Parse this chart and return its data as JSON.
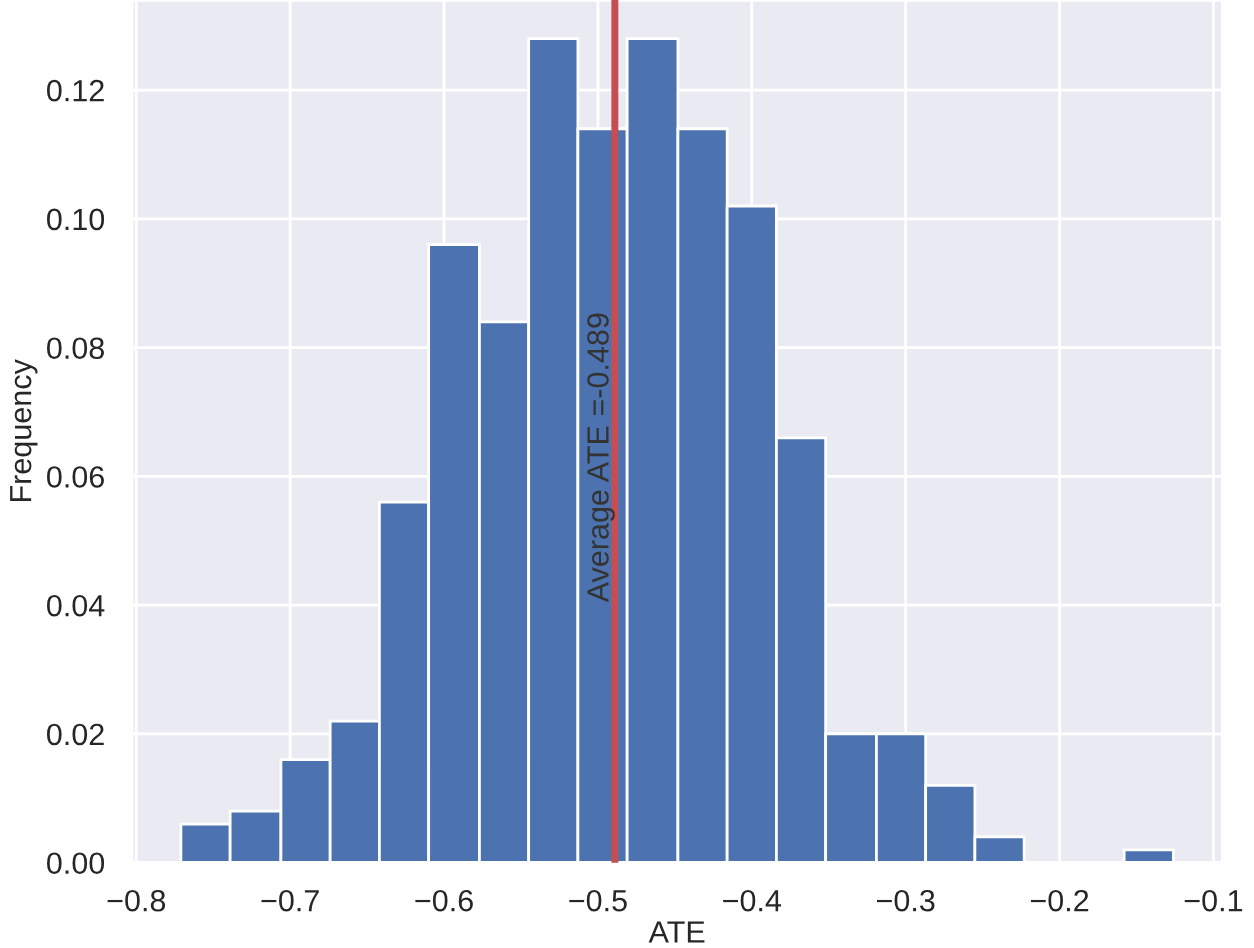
{
  "chart_data": {
    "type": "histogram",
    "xlabel": "ATE",
    "ylabel": "Frequency",
    "bins": [
      -0.771,
      -0.739,
      -0.706,
      -0.674,
      -0.642,
      -0.61,
      -0.577,
      -0.545,
      -0.513,
      -0.481,
      -0.448,
      -0.416,
      -0.384,
      -0.352,
      -0.319,
      -0.287,
      -0.255,
      -0.223,
      -0.158,
      -0.126
    ],
    "values": [
      0.006,
      0.008,
      0.016,
      0.022,
      0.056,
      0.096,
      0.084,
      0.128,
      0.114,
      0.128,
      0.114,
      0.102,
      0.066,
      0.02,
      0.02,
      0.012,
      0.004,
      0,
      0.002
    ],
    "color": "#4c72b0",
    "xlim": [
      -0.803,
      -0.094
    ],
    "ylim": [
      0,
      0.134
    ],
    "xticks": [
      {
        "value": -0.8,
        "label": "−0.8"
      },
      {
        "value": -0.7,
        "label": "−0.7"
      },
      {
        "value": -0.6,
        "label": "−0.6"
      },
      {
        "value": -0.5,
        "label": "−0.5"
      },
      {
        "value": -0.4,
        "label": "−0.4"
      },
      {
        "value": -0.3,
        "label": "−0.3"
      },
      {
        "value": -0.2,
        "label": "−0.2"
      },
      {
        "value": -0.1,
        "label": "−0.1"
      }
    ],
    "yticks": [
      {
        "value": 0,
        "label": "0.00"
      },
      {
        "value": 0.02,
        "label": "0.02"
      },
      {
        "value": 0.04,
        "label": "0.04"
      },
      {
        "value": 0.06,
        "label": "0.06"
      },
      {
        "value": 0.08,
        "label": "0.08"
      },
      {
        "value": 0.1,
        "label": "0.10"
      },
      {
        "value": 0.12,
        "label": "0.12"
      }
    ],
    "ref_lines": [
      {
        "axis": "x",
        "value": -0.489,
        "label": "Average ATE =-0.489",
        "color": "#c44e52"
      }
    ],
    "grid": true
  }
}
